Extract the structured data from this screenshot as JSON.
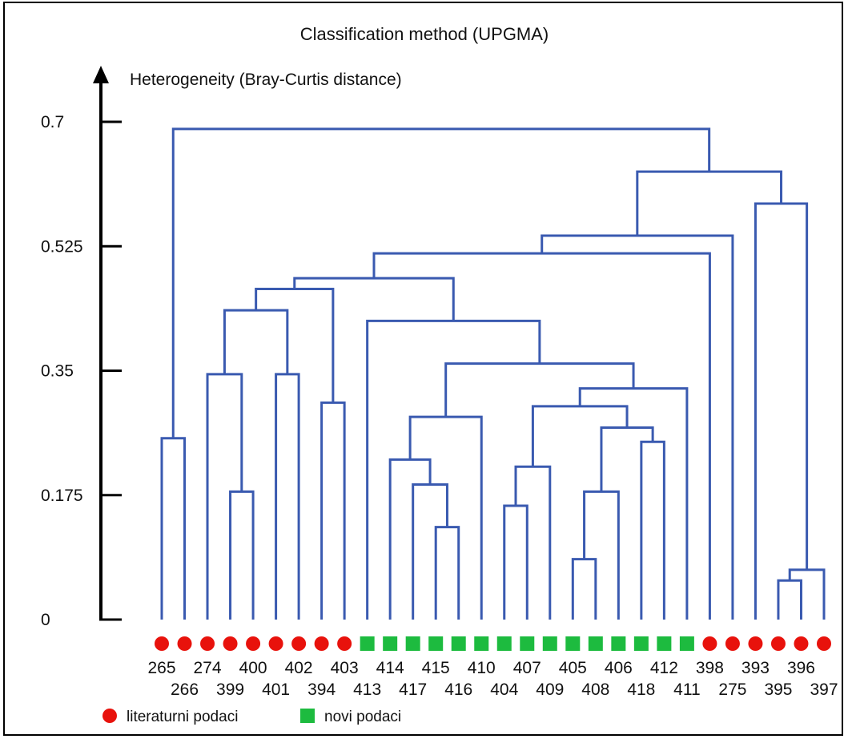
{
  "chart_data": {
    "type": "dendrogram",
    "title": "Classification method (UPGMA)",
    "ylabel": "Heterogeneity (Bray-Curtis distance)",
    "yticks": [
      "0.7",
      "0.525",
      "0.35",
      "0.175",
      "0"
    ],
    "ylim": [
      0,
      0.7
    ],
    "link_color": "#3a5ab0",
    "leaves": [
      {
        "label": "265",
        "group": "literaturni podaci"
      },
      {
        "label": "266",
        "group": "literaturni podaci"
      },
      {
        "label": "274",
        "group": "literaturni podaci"
      },
      {
        "label": "399",
        "group": "literaturni podaci"
      },
      {
        "label": "400",
        "group": "literaturni podaci"
      },
      {
        "label": "401",
        "group": "literaturni podaci"
      },
      {
        "label": "402",
        "group": "literaturni podaci"
      },
      {
        "label": "394",
        "group": "literaturni podaci"
      },
      {
        "label": "403",
        "group": "literaturni podaci"
      },
      {
        "label": "413",
        "group": "novi podaci"
      },
      {
        "label": "414",
        "group": "novi podaci"
      },
      {
        "label": "417",
        "group": "novi podaci"
      },
      {
        "label": "415",
        "group": "novi podaci"
      },
      {
        "label": "416",
        "group": "novi podaci"
      },
      {
        "label": "410",
        "group": "novi podaci"
      },
      {
        "label": "404",
        "group": "novi podaci"
      },
      {
        "label": "407",
        "group": "novi podaci"
      },
      {
        "label": "409",
        "group": "novi podaci"
      },
      {
        "label": "405",
        "group": "novi podaci"
      },
      {
        "label": "408",
        "group": "novi podaci"
      },
      {
        "label": "406",
        "group": "novi podaci"
      },
      {
        "label": "418",
        "group": "novi podaci"
      },
      {
        "label": "412",
        "group": "novi podaci"
      },
      {
        "label": "411",
        "group": "novi podaci"
      },
      {
        "label": "398",
        "group": "literaturni podaci"
      },
      {
        "label": "275",
        "group": "literaturni podaci"
      },
      {
        "label": "393",
        "group": "literaturni podaci"
      },
      {
        "label": "395",
        "group": "literaturni podaci"
      },
      {
        "label": "396",
        "group": "literaturni podaci"
      },
      {
        "label": "397",
        "group": "literaturni podaci"
      }
    ],
    "merges": [
      {
        "id": "A",
        "children": [
          "265",
          "266"
        ],
        "height": 0.255
      },
      {
        "id": "B",
        "children": [
          "399",
          "400"
        ],
        "height": 0.18
      },
      {
        "id": "C",
        "children": [
          "274",
          "B"
        ],
        "height": 0.345
      },
      {
        "id": "D",
        "children": [
          "401",
          "402"
        ],
        "height": 0.345
      },
      {
        "id": "E",
        "children": [
          "C",
          "D"
        ],
        "height": 0.435
      },
      {
        "id": "F",
        "children": [
          "394",
          "403"
        ],
        "height": 0.305
      },
      {
        "id": "G",
        "children": [
          "E",
          "F"
        ],
        "height": 0.465
      },
      {
        "id": "H",
        "children": [
          "415",
          "416"
        ],
        "height": 0.13
      },
      {
        "id": "I",
        "children": [
          "417",
          "H"
        ],
        "height": 0.19
      },
      {
        "id": "J",
        "children": [
          "414",
          "I"
        ],
        "height": 0.225
      },
      {
        "id": "K",
        "children": [
          "J",
          "410"
        ],
        "height": 0.285
      },
      {
        "id": "L",
        "children": [
          "404",
          "407"
        ],
        "height": 0.16
      },
      {
        "id": "M",
        "children": [
          "L",
          "409"
        ],
        "height": 0.215
      },
      {
        "id": "N",
        "children": [
          "405",
          "408"
        ],
        "height": 0.085
      },
      {
        "id": "O",
        "children": [
          "N",
          "406"
        ],
        "height": 0.18
      },
      {
        "id": "P",
        "children": [
          "418",
          "412"
        ],
        "height": 0.25
      },
      {
        "id": "Q",
        "children": [
          "O",
          "P"
        ],
        "height": 0.27
      },
      {
        "id": "R",
        "children": [
          "M",
          "Q"
        ],
        "height": 0.3
      },
      {
        "id": "S",
        "children": [
          "R",
          "411"
        ],
        "height": 0.325
      },
      {
        "id": "T",
        "children": [
          "K",
          "S"
        ],
        "height": 0.36
      },
      {
        "id": "U",
        "children": [
          "413",
          "T"
        ],
        "height": 0.42
      },
      {
        "id": "V",
        "children": [
          "G",
          "U"
        ],
        "height": 0.48
      },
      {
        "id": "W",
        "children": [
          "V",
          "398"
        ],
        "height": 0.515
      },
      {
        "id": "X",
        "children": [
          "W",
          "275"
        ],
        "height": 0.54
      },
      {
        "id": "Y",
        "children": [
          "395",
          "396"
        ],
        "height": 0.055
      },
      {
        "id": "Z",
        "children": [
          "Y",
          "397"
        ],
        "height": 0.07
      },
      {
        "id": "AA",
        "children": [
          "393",
          "Z"
        ],
        "height": 0.585
      },
      {
        "id": "AB",
        "children": [
          "X",
          "AA"
        ],
        "height": 0.63
      },
      {
        "id": "AC",
        "children": [
          "A",
          "AB"
        ],
        "height": 0.69
      }
    ],
    "legend": [
      {
        "label": "literaturni podaci",
        "color": "#e8120c",
        "marker": "circle"
      },
      {
        "label": "novi podaci",
        "color": "#1dbb3f",
        "marker": "square"
      }
    ]
  }
}
